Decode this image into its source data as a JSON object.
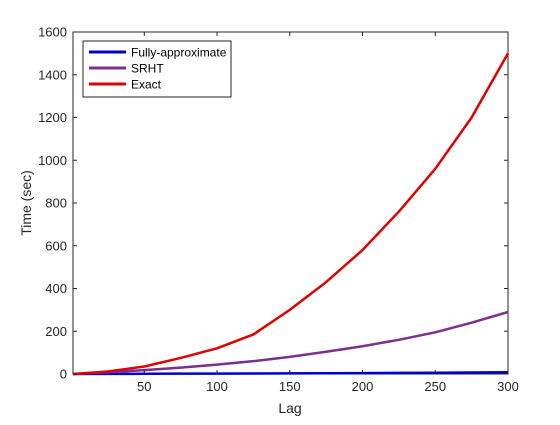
{
  "chart_data": {
    "type": "line",
    "xlabel": "Lag",
    "ylabel": "Time (sec)",
    "xlim": [
      1,
      300
    ],
    "ylim": [
      0,
      1600
    ],
    "xticks": [
      50,
      100,
      150,
      200,
      250,
      300
    ],
    "yticks": [
      0,
      200,
      400,
      600,
      800,
      1000,
      1200,
      1400,
      1600
    ],
    "grid": false,
    "legend_position": "top-left",
    "series": [
      {
        "name": "Fully-approximate",
        "color": "#0000cc",
        "x": [
          1,
          25,
          50,
          75,
          100,
          125,
          150,
          175,
          200,
          225,
          250,
          275,
          300
        ],
        "y": [
          0,
          0.5,
          1,
          1.5,
          2,
          2.5,
          3,
          3.5,
          4,
          5,
          6,
          7,
          8
        ]
      },
      {
        "name": "SRHT",
        "color": "#7e2f8e",
        "x": [
          1,
          25,
          50,
          75,
          100,
          125,
          150,
          175,
          200,
          225,
          250,
          275,
          300
        ],
        "y": [
          0,
          8,
          18,
          30,
          44,
          60,
          80,
          104,
          130,
          160,
          195,
          240,
          290
        ]
      },
      {
        "name": "Exact",
        "color": "#e00000",
        "x": [
          1,
          25,
          50,
          75,
          100,
          125,
          150,
          175,
          200,
          225,
          250,
          275,
          300
        ],
        "y": [
          0,
          12,
          35,
          75,
          120,
          185,
          300,
          430,
          580,
          760,
          960,
          1200,
          1500
        ]
      }
    ]
  }
}
